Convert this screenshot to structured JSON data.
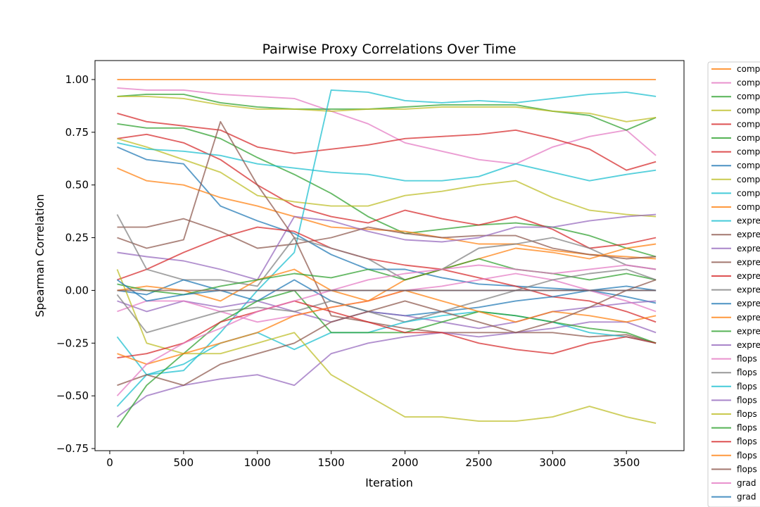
{
  "chart_data": {
    "type": "line",
    "title": "Pairwise Proxy Correlations Over Time",
    "xlabel": "Iteration",
    "ylabel": "Spearman Correlation",
    "xlim": [
      -100,
      3890
    ],
    "ylim": [
      -0.76,
      1.09
    ],
    "x_ticks": [
      0,
      500,
      1000,
      1500,
      2000,
      2500,
      3000,
      3500
    ],
    "y_ticks": [
      1.0,
      0.75,
      0.5,
      0.25,
      0.0,
      -0.25,
      -0.5,
      -0.75
    ],
    "y_tick_labels": [
      "1.00",
      "0.75",
      "0.50",
      "0.25",
      "0.00",
      "−0.25",
      "−0.50",
      "−0.75"
    ],
    "legend_position": "outside right (clipped)",
    "grid": false,
    "x": [
      50,
      250,
      500,
      750,
      1000,
      1250,
      1500,
      1750,
      2000,
      2250,
      2500,
      2750,
      3000,
      3250,
      3500,
      3700
    ],
    "colors": [
      "#1f77b4",
      "#ff7f0e",
      "#2ca02c",
      "#d62728",
      "#9467bd",
      "#8c564b",
      "#e377c2",
      "#7f7f7f",
      "#bcbd22",
      "#17becf"
    ],
    "legend_labels": [
      "comp",
      "comp",
      "comp",
      "comp",
      "comp",
      "comp",
      "comp",
      "comp",
      "comp",
      "comp",
      "comp",
      "expre",
      "expre",
      "expre",
      "expre",
      "expre",
      "expre",
      "expre",
      "expre",
      "expre",
      "expre",
      "flops",
      "flops",
      "flops",
      "flops",
      "flops",
      "flops",
      "flops",
      "flops",
      "flops",
      "grad",
      "grad"
    ],
    "series": [
      {
        "color_index": 1,
        "values": [
          1.0,
          1.0,
          1.0,
          1.0,
          1.0,
          1.0,
          1.0,
          1.0,
          1.0,
          1.0,
          1.0,
          1.0,
          1.0,
          1.0,
          1.0,
          1.0
        ]
      },
      {
        "color_index": 6,
        "values": [
          0.96,
          0.95,
          0.95,
          0.93,
          0.92,
          0.91,
          0.85,
          0.79,
          0.7,
          0.66,
          0.62,
          0.6,
          0.68,
          0.73,
          0.76,
          0.64
        ]
      },
      {
        "color_index": 2,
        "values": [
          0.92,
          0.93,
          0.93,
          0.89,
          0.87,
          0.86,
          0.86,
          0.86,
          0.87,
          0.88,
          0.88,
          0.88,
          0.85,
          0.83,
          0.76,
          0.82
        ]
      },
      {
        "color_index": 8,
        "values": [
          0.92,
          0.92,
          0.91,
          0.88,
          0.86,
          0.86,
          0.85,
          0.86,
          0.86,
          0.87,
          0.87,
          0.87,
          0.85,
          0.84,
          0.8,
          0.82
        ]
      },
      {
        "color_index": 3,
        "values": [
          0.84,
          0.8,
          0.78,
          0.76,
          0.68,
          0.65,
          0.67,
          0.69,
          0.72,
          0.73,
          0.74,
          0.76,
          0.72,
          0.67,
          0.57,
          0.61
        ]
      },
      {
        "color_index": 2,
        "values": [
          0.79,
          0.77,
          0.77,
          0.72,
          0.63,
          0.55,
          0.46,
          0.35,
          0.27,
          0.29,
          0.31,
          0.32,
          0.3,
          0.26,
          0.2,
          0.16
        ]
      },
      {
        "color_index": 3,
        "values": [
          0.72,
          0.74,
          0.7,
          0.62,
          0.5,
          0.4,
          0.35,
          0.32,
          0.38,
          0.34,
          0.31,
          0.35,
          0.29,
          0.2,
          0.22,
          0.25
        ]
      },
      {
        "color_index": 0,
        "values": [
          0.68,
          0.62,
          0.6,
          0.4,
          0.33,
          0.27,
          0.17,
          0.1,
          0.1,
          0.06,
          0.03,
          0.02,
          0.01,
          0.0,
          -0.03,
          -0.06
        ]
      },
      {
        "color_index": 8,
        "values": [
          0.72,
          0.68,
          0.62,
          0.56,
          0.45,
          0.42,
          0.4,
          0.4,
          0.45,
          0.47,
          0.5,
          0.52,
          0.44,
          0.38,
          0.36,
          0.35
        ]
      },
      {
        "color_index": 9,
        "values": [
          0.7,
          0.67,
          0.66,
          0.64,
          0.6,
          0.58,
          0.56,
          0.55,
          0.52,
          0.52,
          0.54,
          0.6,
          0.56,
          0.52,
          0.55,
          0.57
        ]
      },
      {
        "color_index": 1,
        "values": [
          0.58,
          0.52,
          0.5,
          0.44,
          0.4,
          0.35,
          0.3,
          0.29,
          0.28,
          0.25,
          0.22,
          0.22,
          0.19,
          0.17,
          0.16,
          0.15
        ]
      },
      {
        "color_index": 9,
        "values": [
          -0.22,
          -0.4,
          -0.38,
          -0.2,
          0.0,
          0.18,
          0.95,
          0.94,
          0.9,
          0.89,
          0.9,
          0.89,
          0.91,
          0.93,
          0.94,
          0.92
        ]
      },
      {
        "color_index": 5,
        "values": [
          0.3,
          0.3,
          0.34,
          0.28,
          0.2,
          0.22,
          0.25,
          0.3,
          0.27,
          0.25,
          0.26,
          0.26,
          0.2,
          0.17,
          0.15,
          0.16
        ]
      },
      {
        "color_index": 4,
        "values": [
          0.18,
          0.16,
          0.14,
          0.1,
          0.05,
          0.35,
          0.33,
          0.28,
          0.24,
          0.23,
          0.25,
          0.3,
          0.3,
          0.33,
          0.35,
          0.36
        ]
      },
      {
        "color_index": 5,
        "values": [
          0.25,
          0.2,
          0.24,
          0.8,
          0.5,
          0.25,
          -0.12,
          -0.15,
          -0.18,
          -0.2,
          -0.2,
          -0.2,
          -0.2,
          -0.22,
          -0.21,
          -0.25
        ]
      },
      {
        "color_index": 3,
        "values": [
          0.05,
          0.1,
          0.18,
          0.25,
          0.3,
          0.28,
          0.2,
          0.15,
          0.12,
          0.1,
          0.06,
          0.02,
          -0.03,
          -0.05,
          -0.1,
          -0.15
        ]
      },
      {
        "color_index": 7,
        "values": [
          0.36,
          0.1,
          0.05,
          0.05,
          0.02,
          0.25,
          0.2,
          0.15,
          0.05,
          0.1,
          0.2,
          0.22,
          0.25,
          0.2,
          0.12,
          0.1
        ]
      },
      {
        "color_index": 0,
        "values": [
          0.0,
          -0.02,
          0.05,
          0.0,
          -0.05,
          0.05,
          -0.05,
          -0.1,
          -0.12,
          -0.1,
          -0.08,
          -0.05,
          -0.03,
          0.0,
          0.02,
          0.0
        ]
      },
      {
        "color_index": 1,
        "values": [
          0.0,
          0.02,
          0.0,
          -0.05,
          0.05,
          0.1,
          0.0,
          -0.05,
          0.05,
          0.1,
          0.15,
          0.2,
          0.18,
          0.15,
          0.2,
          0.22
        ]
      },
      {
        "color_index": 2,
        "values": [
          0.03,
          0.0,
          -0.02,
          0.02,
          0.05,
          0.08,
          0.06,
          0.1,
          0.05,
          0.1,
          0.15,
          0.1,
          0.08,
          0.05,
          0.08,
          0.05
        ]
      },
      {
        "color_index": 4,
        "values": [
          -0.05,
          -0.1,
          -0.05,
          -0.08,
          -0.05,
          -0.1,
          -0.15,
          -0.1,
          -0.12,
          -0.15,
          -0.18,
          -0.15,
          -0.1,
          -0.08,
          -0.06,
          -0.05
        ]
      },
      {
        "color_index": 6,
        "values": [
          -0.1,
          -0.05,
          -0.05,
          -0.1,
          -0.15,
          -0.12,
          -0.08,
          -0.05,
          0.0,
          0.02,
          0.05,
          0.08,
          0.05,
          0.0,
          -0.05,
          -0.1
        ]
      },
      {
        "color_index": 7,
        "values": [
          -0.02,
          -0.2,
          -0.15,
          -0.1,
          -0.08,
          -0.1,
          -0.05,
          -0.1,
          -0.15,
          -0.1,
          -0.05,
          0.0,
          0.05,
          0.08,
          0.1,
          0.05
        ]
      },
      {
        "color_index": 9,
        "values": [
          -0.55,
          -0.4,
          -0.35,
          -0.25,
          -0.2,
          -0.28,
          -0.2,
          -0.2,
          -0.15,
          -0.12,
          -0.1,
          -0.12,
          -0.15,
          -0.2,
          -0.22,
          -0.25
        ]
      },
      {
        "color_index": 4,
        "values": [
          -0.6,
          -0.5,
          -0.45,
          -0.42,
          -0.4,
          -0.45,
          -0.3,
          -0.25,
          -0.22,
          -0.2,
          -0.22,
          -0.2,
          -0.18,
          -0.15,
          -0.15,
          -0.2
        ]
      },
      {
        "color_index": 8,
        "values": [
          0.1,
          -0.25,
          -0.3,
          -0.3,
          -0.25,
          -0.2,
          -0.4,
          -0.5,
          -0.6,
          -0.6,
          -0.62,
          -0.62,
          -0.6,
          -0.55,
          -0.6,
          -0.63
        ]
      },
      {
        "color_index": 2,
        "values": [
          -0.65,
          -0.45,
          -0.3,
          -0.15,
          -0.05,
          0.0,
          -0.2,
          -0.2,
          -0.2,
          -0.15,
          -0.1,
          -0.12,
          -0.15,
          -0.18,
          -0.2,
          -0.25
        ]
      },
      {
        "color_index": 3,
        "values": [
          -0.32,
          -0.3,
          -0.25,
          -0.15,
          -0.1,
          -0.05,
          -0.1,
          -0.15,
          -0.2,
          -0.2,
          -0.25,
          -0.28,
          -0.3,
          -0.25,
          -0.22,
          -0.25
        ]
      },
      {
        "color_index": 1,
        "values": [
          -0.3,
          -0.35,
          -0.3,
          -0.25,
          -0.2,
          -0.12,
          -0.08,
          -0.05,
          0.0,
          -0.05,
          -0.1,
          -0.15,
          -0.1,
          -0.12,
          -0.15,
          -0.12
        ]
      },
      {
        "color_index": 5,
        "values": [
          -0.45,
          -0.4,
          -0.45,
          -0.35,
          -0.3,
          -0.25,
          -0.15,
          -0.1,
          -0.05,
          -0.1,
          -0.15,
          -0.2,
          -0.15,
          -0.08,
          0.0,
          0.05
        ]
      },
      {
        "color_index": 6,
        "values": [
          -0.5,
          -0.35,
          -0.25,
          -0.18,
          -0.1,
          -0.05,
          0.0,
          0.05,
          0.08,
          0.1,
          0.12,
          0.1,
          0.08,
          0.1,
          0.12,
          0.1
        ]
      },
      {
        "color_index": 0,
        "values": [
          0.05,
          -0.05,
          -0.02,
          0.0,
          0.0,
          0.0,
          0.0,
          0.0,
          0.0,
          0.0,
          0.0,
          0.0,
          0.0,
          0.0,
          0.0,
          0.0
        ]
      },
      {
        "color_index": 5,
        "values": [
          0.0,
          0.0,
          0.0,
          0.0,
          0.0,
          0.0,
          0.0,
          0.0,
          0.0,
          0.0,
          0.0,
          0.0,
          0.0,
          0.0,
          0.0,
          0.0
        ]
      }
    ]
  }
}
